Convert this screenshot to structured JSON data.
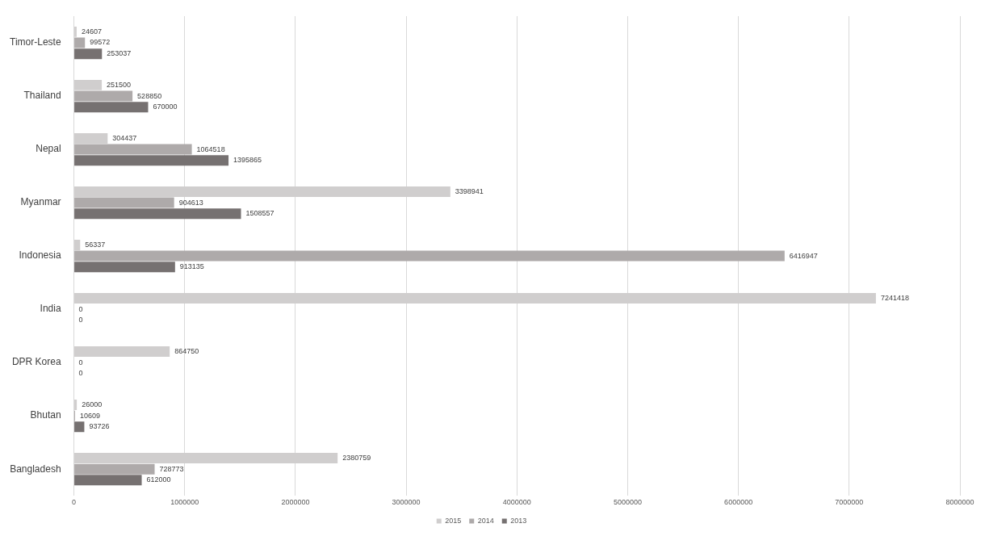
{
  "chart_data": {
    "type": "bar",
    "orientation": "horizontal",
    "categories": [
      "Timor-Leste",
      "Thailand",
      "Nepal",
      "Myanmar",
      "Indonesia",
      "India",
      "DPR Korea",
      "Bhutan",
      "Bangladesh"
    ],
    "series": [
      {
        "name": "2015",
        "color": "#d0cece",
        "values": [
          24607,
          251500,
          304437,
          3398941,
          56337,
          7241418,
          864750,
          26000,
          2380759
        ]
      },
      {
        "name": "2014",
        "color": "#aeaaaa",
        "values": [
          99572,
          528850,
          1064518,
          904613,
          6416947,
          0,
          0,
          10609,
          728773
        ]
      },
      {
        "name": "2013",
        "color": "#767171",
        "values": [
          253037,
          670000,
          1395865,
          1508557,
          913135,
          0,
          0,
          93726,
          612000
        ]
      }
    ],
    "xlim": [
      0,
      8000000
    ],
    "xticks": [
      0,
      1000000,
      2000000,
      3000000,
      4000000,
      5000000,
      6000000,
      7000000,
      8000000
    ],
    "grid": true,
    "legend": "bottom",
    "data_labels": true
  }
}
